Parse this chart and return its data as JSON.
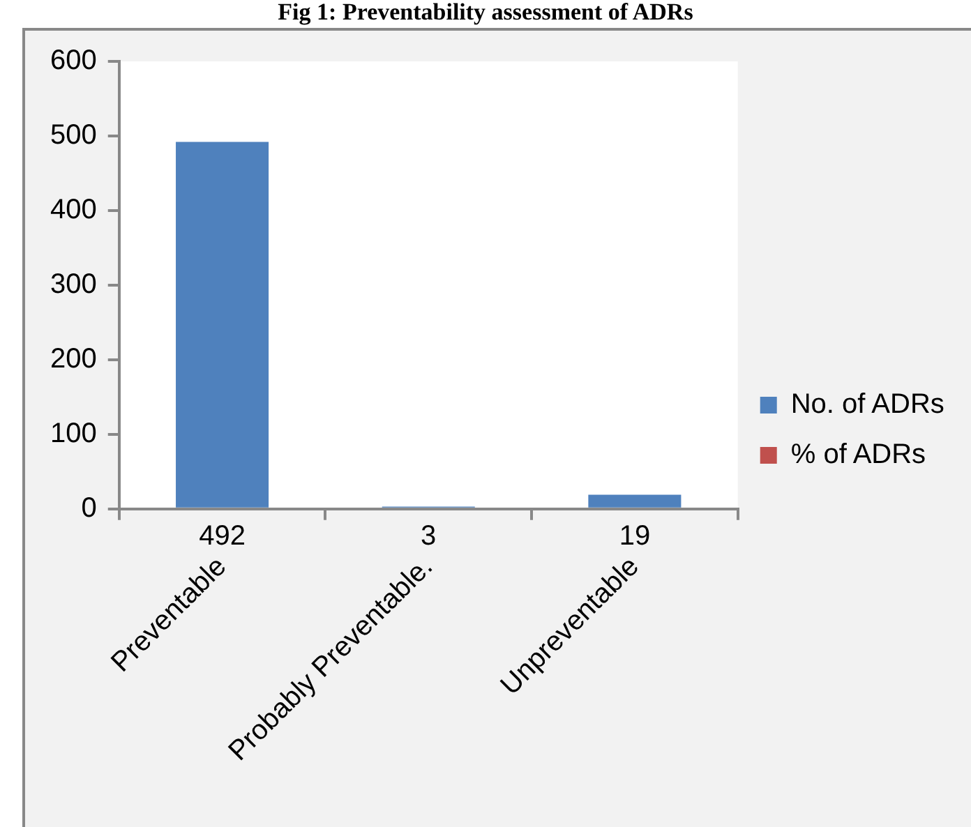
{
  "chart_data": {
    "type": "bar",
    "title": "Fig 1: Preventability assessment of ADRs",
    "categories": [
      "Preventable",
      "Probably Preventable.",
      "Unpreventable"
    ],
    "series": [
      {
        "name": "No. of ADRs",
        "color": "#4f81bd",
        "values": [
          492,
          3,
          19
        ]
      },
      {
        "name": "% of ADRs",
        "color": "#c0504d",
        "values": [
          null,
          null,
          null
        ]
      }
    ],
    "data_labels": true,
    "ylim": [
      0,
      600
    ],
    "yticks": [
      0,
      100,
      200,
      300,
      400,
      500,
      600
    ],
    "grid": false,
    "legend": "right"
  }
}
